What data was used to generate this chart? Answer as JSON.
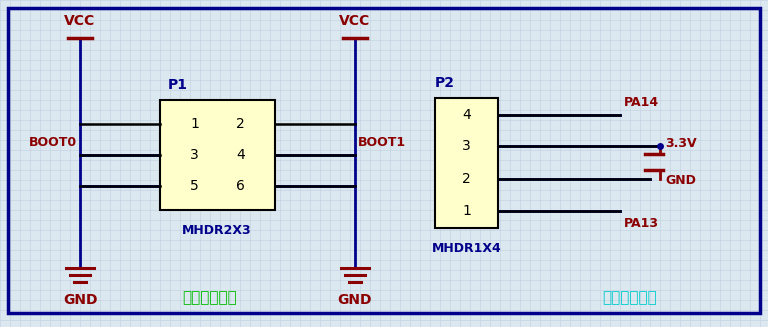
{
  "bg_color": "#dce8f0",
  "border_color": "#00008B",
  "grid_color": "#c0d0e0",
  "wire_color": "#00008B",
  "component_fill": "#ffffcc",
  "component_edge": "#000000",
  "label_dark_red": "#8B0000",
  "label_blue": "#00008B",
  "label_green": "#00bb00",
  "label_cyan": "#00cccc",
  "section1_label": "下载方式选择",
  "section2_label": "程序烧录接口",
  "p1_name": "P1",
  "p1_part": "MHDR2X3",
  "p2_name": "P2",
  "p2_part": "MHDR1X4"
}
